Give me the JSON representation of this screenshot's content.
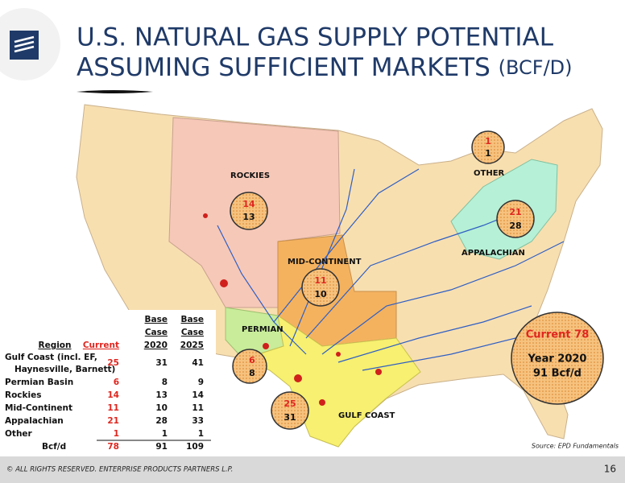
{
  "header": {
    "title_line1": "U.S. NATURAL GAS SUPPLY POTENTIAL",
    "title_line2": "ASSUMING SUFFICIENT MARKETS",
    "title_unit": "(BCF/D)"
  },
  "map": {
    "regions": [
      {
        "label": "OTHER",
        "current": 1,
        "base_2020": 1
      },
      {
        "label": "ROCKIES",
        "current": 14,
        "base_2020": 13
      },
      {
        "label": "APPALACHIAN",
        "current": 21,
        "base_2020": 28
      },
      {
        "label": "MID-CONTINENT",
        "current": 11,
        "base_2020": 10
      },
      {
        "label": "PERMIAN",
        "current": 6,
        "base_2020": 8
      },
      {
        "label": "GULF COAST",
        "current": 25,
        "base_2020": 31
      }
    ],
    "summary": {
      "current": "Current 78",
      "year": "Year 2020",
      "total": "91 Bcf/d"
    }
  },
  "table": {
    "headers": {
      "region": "Region",
      "current": "Current",
      "base_2020": [
        "Base",
        "Case",
        "2020"
      ],
      "base_2025": [
        "Base",
        "Case",
        "2025"
      ]
    },
    "rows": [
      {
        "region": [
          "Gulf Coast (incl. EF,",
          "Haynesville, Barnett)"
        ],
        "current": 25,
        "base_2020": 31,
        "base_2025": 41
      },
      {
        "region": [
          "Permian Basin"
        ],
        "current": 6,
        "base_2020": 8,
        "base_2025": 9
      },
      {
        "region": [
          "Rockies"
        ],
        "current": 14,
        "base_2020": 13,
        "base_2025": 14
      },
      {
        "region": [
          "Mid-Continent"
        ],
        "current": 11,
        "base_2020": 10,
        "base_2025": 11
      },
      {
        "region": [
          "Appalachian"
        ],
        "current": 21,
        "base_2020": 28,
        "base_2025": 33
      },
      {
        "region": [
          "Other"
        ],
        "current": 1,
        "base_2020": 1,
        "base_2025": 1
      },
      {
        "region": [
          "Bcf/d"
        ],
        "current": 78,
        "base_2020": 91,
        "base_2025": 109
      }
    ]
  },
  "source": "Source:  EPD Fundamentals",
  "footer": {
    "copyright": "© ALL RIGHTS RESERVED. ENTERPRISE PRODUCTS PARTNERS L.P.",
    "page": "16"
  }
}
